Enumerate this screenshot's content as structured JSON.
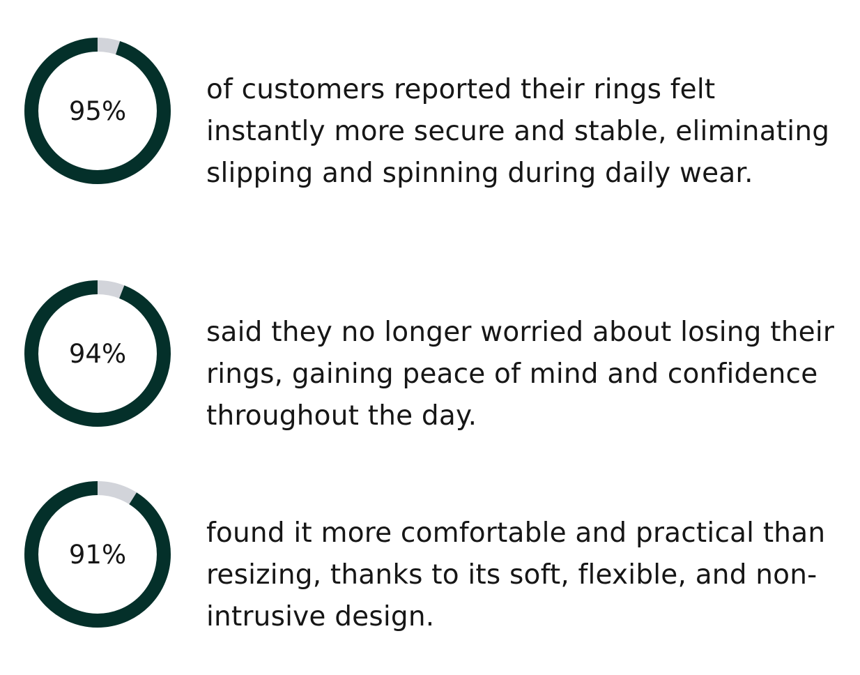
{
  "colors": {
    "ring_fill": "#04302a",
    "ring_track": "#d2d4da",
    "text": "#161616"
  },
  "stats": [
    {
      "percent": 95,
      "label": "95%",
      "text": "of customers reported their rings felt instantly more secure and stable, eliminating slipping and spinning during daily wear."
    },
    {
      "percent": 94,
      "label": "94%",
      "text": "said they no longer worried about losing their rings, gaining peace of mind and confidence throughout the day."
    },
    {
      "percent": 91,
      "label": "91%",
      "text": "found it more comfortable and practical than resizing, thanks to its soft, flexible, and non-intrusive design."
    }
  ]
}
